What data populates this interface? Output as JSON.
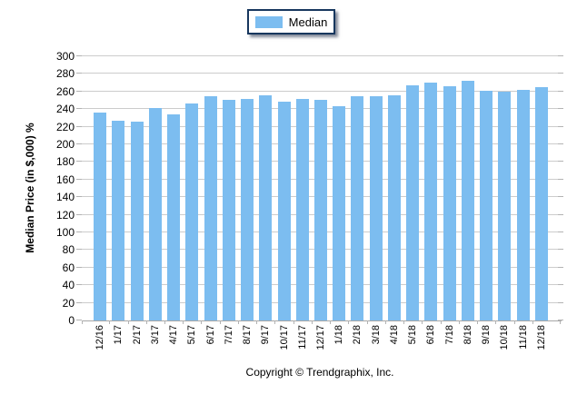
{
  "legend": {
    "label": "Median"
  },
  "footer": {
    "copyright": "Copyright © Trendgraphix, Inc."
  },
  "chart_data": {
    "type": "bar",
    "title": "",
    "xlabel": "",
    "ylabel": "Median Price (in $,000) %",
    "ylim": [
      0,
      300
    ],
    "ytick_step": 20,
    "yticks": [
      0,
      20,
      40,
      60,
      80,
      100,
      120,
      140,
      160,
      180,
      200,
      220,
      240,
      260,
      280,
      300
    ],
    "grid": true,
    "legend_position": "top-center",
    "series_name": "Median",
    "categories": [
      "12/16",
      "1/17",
      "2/17",
      "3/17",
      "4/17",
      "5/17",
      "6/17",
      "7/17",
      "8/17",
      "9/17",
      "10/17",
      "11/17",
      "12/17",
      "1/18",
      "2/18",
      "3/18",
      "4/18",
      "5/18",
      "6/18",
      "7/18",
      "8/18",
      "9/18",
      "10/18",
      "11/18",
      "12/18"
    ],
    "values": [
      236,
      227,
      226,
      241,
      234,
      246,
      255,
      251,
      252,
      256,
      248,
      252,
      251,
      243,
      255,
      255,
      256,
      267,
      270,
      266,
      272,
      261,
      260,
      262,
      265
    ],
    "bar_color": "#7CBDF0",
    "gridline_color": "#CCCCCC",
    "legend_border_color": "#17375E"
  }
}
